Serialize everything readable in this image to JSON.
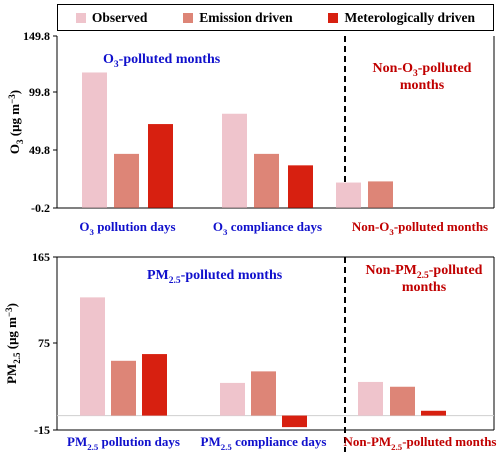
{
  "legend": [
    {
      "name": "Observed",
      "color": "#efc4cc"
    },
    {
      "name": "Emission driven",
      "color": "#dd8577"
    },
    {
      "name": "Meterologically driven",
      "color": "#d72010"
    }
  ],
  "chart_data": [
    {
      "type": "bar",
      "ylabel_main": "O",
      "ylabel_sub": "3",
      "ylabel_unit": " (μg m",
      "ylabel_sup": "−3",
      "ylabel_end": ")",
      "yticks": [
        "149.8",
        "99.8",
        "49.8",
        "-0.2"
      ],
      "ylim": [
        -0.2,
        149.8
      ],
      "group_labels": [
        {
          "main": "O",
          "sub": "3",
          "rest": " pollution days",
          "color": "#1010cc"
        },
        {
          "main": "O",
          "sub": "3",
          "rest": " compliance days",
          "color": "#1010cc"
        },
        {
          "main": "Non-O",
          "sub": "3",
          "rest": "-polluted months",
          "color": "#c00000"
        }
      ],
      "annotations": [
        {
          "main": "O",
          "sub": "3",
          "rest": "-polluted months",
          "color": "#1010cc"
        },
        {
          "main": "Non-O",
          "sub": "3",
          "rest": "-polluted",
          "line2": "months",
          "color": "#c00000"
        }
      ],
      "series": [
        {
          "name": "Observed",
          "values": [
            118,
            82,
            22
          ]
        },
        {
          "name": "Emission driven",
          "values": [
            47,
            47,
            23
          ]
        },
        {
          "name": "Meterologically driven",
          "values": [
            73,
            37,
            null
          ]
        }
      ]
    },
    {
      "type": "bar",
      "ylabel_main": "PM",
      "ylabel_sub": "2.5",
      "ylabel_unit": " (μg m",
      "ylabel_sup": "−3",
      "ylabel_end": ")",
      "yticks": [
        "165",
        "75",
        "-15"
      ],
      "ylim": [
        -15,
        165
      ],
      "group_labels": [
        {
          "main": "PM",
          "sub": "2.5",
          "rest": " pollution days",
          "color": "#1010cc"
        },
        {
          "main": "PM",
          "sub": "2.5",
          "rest": " compliance days",
          "color": "#1010cc"
        },
        {
          "main": "Non-PM",
          "sub": "2.5",
          "rest": "-polluted months",
          "color": "#c00000"
        }
      ],
      "annotations": [
        {
          "main": "PM",
          "sub": "2.5",
          "rest": "-polluted months",
          "color": "#1010cc"
        },
        {
          "main": "Non-PM",
          "sub": "2.5",
          "rest": "-polluted",
          "line2": "months",
          "color": "#c00000"
        }
      ],
      "series": [
        {
          "name": "Observed",
          "values": [
            123,
            34,
            35
          ]
        },
        {
          "name": "Emission driven",
          "values": [
            57,
            46,
            30
          ]
        },
        {
          "name": "Meterologically driven",
          "values": [
            64,
            -12,
            5
          ]
        }
      ]
    }
  ]
}
